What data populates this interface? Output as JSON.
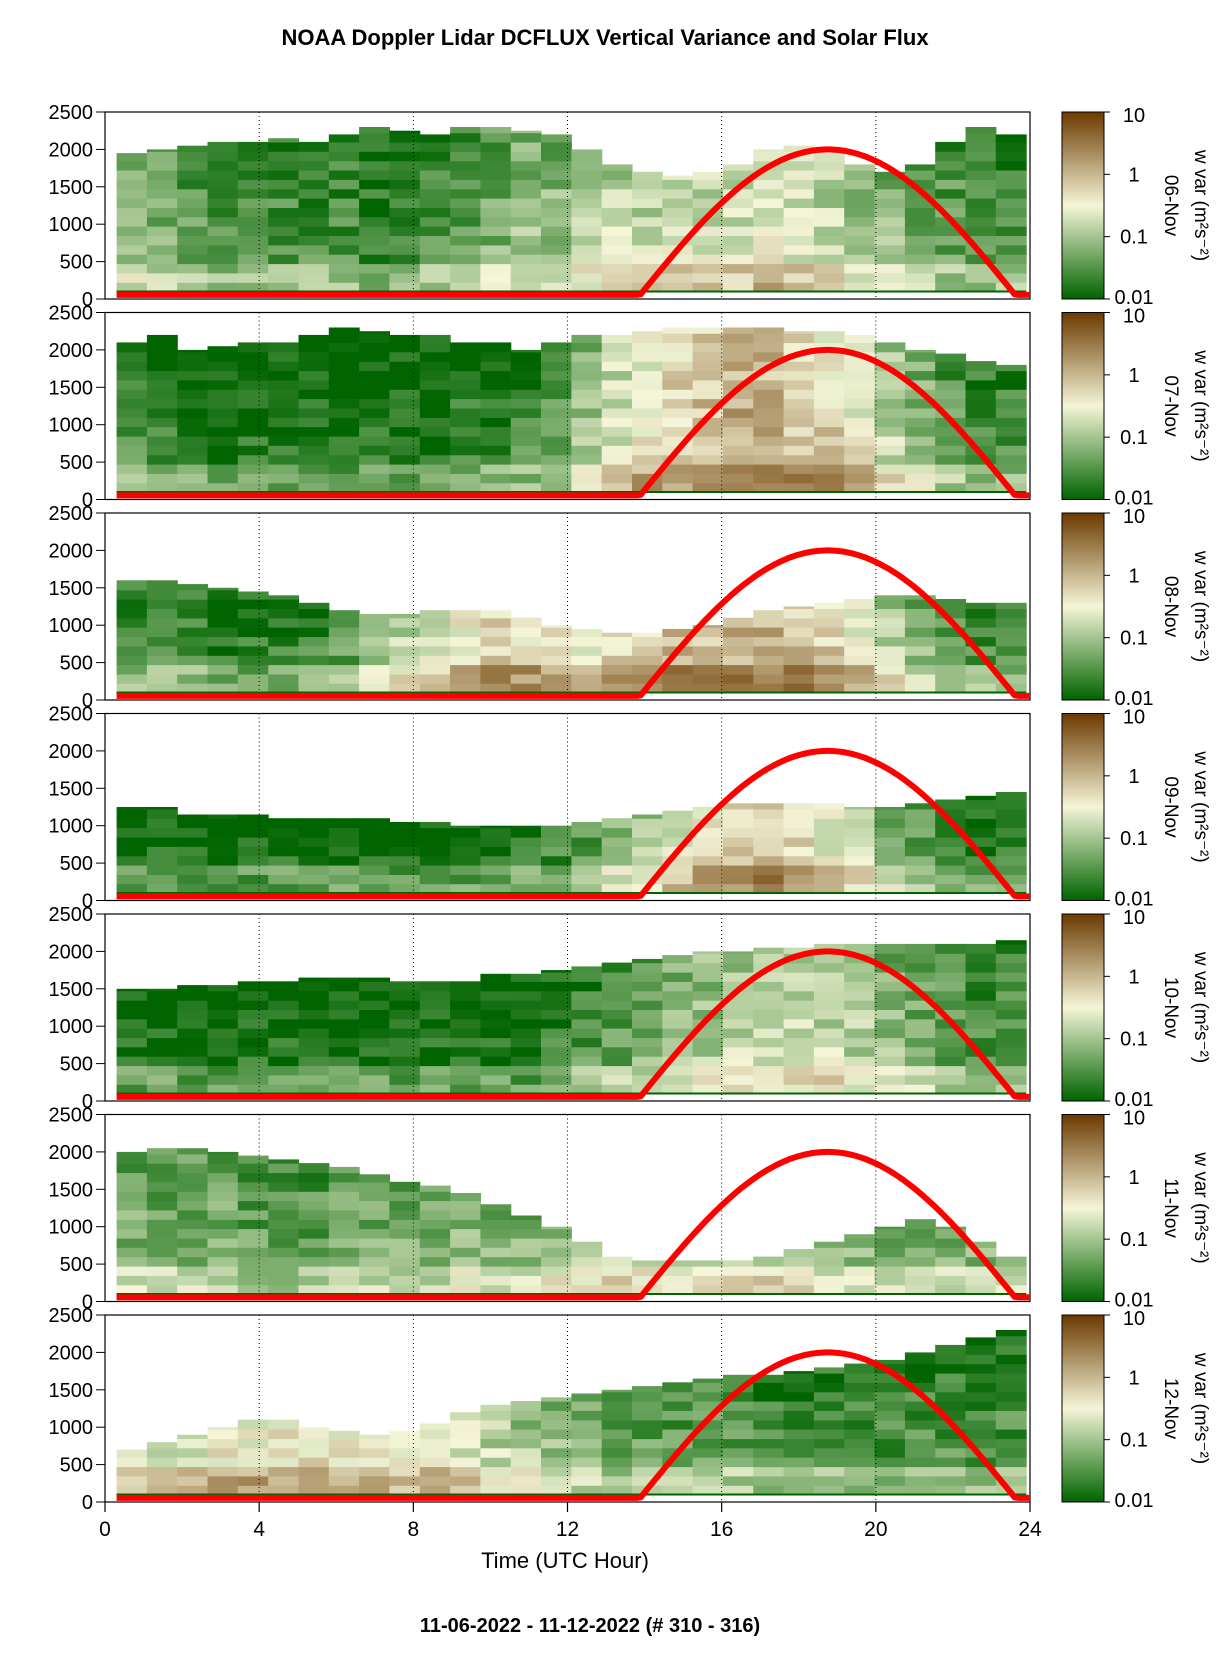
{
  "title": "NOAA Doppler Lidar DCFLUX Vertical Variance and Solar Flux",
  "footer": "11-06-2022 - 11-12-2022   (# 310 - 316)",
  "colors": {
    "sun": "#ff0000",
    "low": "#006400",
    "mid": "#f5f5d8",
    "high": "#6b3a00",
    "baseline": "#006400"
  },
  "chart_data": {
    "type": "heatmap",
    "xlabel": "Time (UTC Hour)",
    "xlim": [
      0,
      24
    ],
    "xticks": [
      0,
      4,
      8,
      12,
      16,
      20,
      24
    ],
    "ylim": [
      0,
      2500
    ],
    "yticks": [
      0,
      500,
      1000,
      1500,
      2000,
      2500
    ],
    "colorbar": {
      "label": "w var (m²s⁻²)",
      "scale": "log",
      "range": [
        0.01,
        10
      ],
      "ticks": [
        "10",
        "1",
        "0.1",
        "0.01"
      ]
    },
    "sun_curve": {
      "sunrise": 13.8,
      "peak_hour": 18.7,
      "sunset": 23.7,
      "peak": 2000
    },
    "panels": [
      {
        "day": "06-Nov",
        "top": [
          1950,
          2000,
          2050,
          2100,
          2100,
          2150,
          2100,
          2200,
          2300,
          2250,
          2200,
          2300,
          2300,
          2250,
          2200,
          2000,
          1800,
          1700,
          1650,
          1700,
          1800,
          2000,
          2050,
          2000,
          1800,
          1700,
          1800,
          2100,
          2300,
          2200
        ],
        "int": [
          0.35,
          0.3,
          0.25,
          0.2,
          0.2,
          0.2,
          0.2,
          0.2,
          0.15,
          0.15,
          0.2,
          0.25,
          0.3,
          0.35,
          0.35,
          0.4,
          0.45,
          0.45,
          0.5,
          0.5,
          0.5,
          0.55,
          0.5,
          0.45,
          0.4,
          0.35,
          0.3,
          0.25,
          0.2,
          0.2
        ]
      },
      {
        "day": "07-Nov",
        "top": [
          2100,
          2200,
          2000,
          2050,
          2100,
          2100,
          2200,
          2300,
          2250,
          2200,
          2200,
          2100,
          2100,
          2000,
          2100,
          2200,
          2200,
          2250,
          2300,
          2300,
          2300,
          2300,
          2250,
          2250,
          2200,
          2100,
          2000,
          1950,
          1850,
          1800
        ],
        "int": [
          0.2,
          0.15,
          0.15,
          0.1,
          0.1,
          0.1,
          0.1,
          0.1,
          0.1,
          0.1,
          0.1,
          0.15,
          0.15,
          0.2,
          0.25,
          0.35,
          0.5,
          0.6,
          0.65,
          0.7,
          0.75,
          0.75,
          0.7,
          0.65,
          0.55,
          0.45,
          0.35,
          0.25,
          0.2,
          0.2
        ]
      },
      {
        "day": "08-Nov",
        "top": [
          1600,
          1600,
          1550,
          1500,
          1450,
          1400,
          1300,
          1200,
          1150,
          1150,
          1200,
          1200,
          1200,
          1100,
          1000,
          950,
          900,
          900,
          950,
          1000,
          1100,
          1200,
          1250,
          1300,
          1350,
          1400,
          1400,
          1350,
          1300,
          1300
        ],
        "int": [
          0.2,
          0.2,
          0.2,
          0.15,
          0.15,
          0.15,
          0.2,
          0.25,
          0.35,
          0.45,
          0.55,
          0.6,
          0.65,
          0.65,
          0.6,
          0.6,
          0.65,
          0.7,
          0.75,
          0.75,
          0.75,
          0.75,
          0.7,
          0.65,
          0.55,
          0.45,
          0.35,
          0.25,
          0.2,
          0.2
        ]
      },
      {
        "day": "09-Nov",
        "top": [
          1250,
          1250,
          1150,
          1150,
          1150,
          1100,
          1100,
          1100,
          1100,
          1050,
          1050,
          1000,
          1000,
          1000,
          1000,
          1050,
          1100,
          1150,
          1200,
          1250,
          1300,
          1300,
          1300,
          1300,
          1250,
          1250,
          1300,
          1350,
          1400,
          1450
        ],
        "int": [
          0.1,
          0.1,
          0.1,
          0.1,
          0.1,
          0.1,
          0.1,
          0.1,
          0.1,
          0.1,
          0.1,
          0.1,
          0.1,
          0.15,
          0.2,
          0.25,
          0.35,
          0.45,
          0.55,
          0.65,
          0.7,
          0.7,
          0.65,
          0.55,
          0.45,
          0.35,
          0.25,
          0.2,
          0.15,
          0.15
        ]
      },
      {
        "day": "10-Nov",
        "top": [
          1500,
          1500,
          1550,
          1550,
          1600,
          1600,
          1650,
          1650,
          1650,
          1600,
          1600,
          1600,
          1700,
          1700,
          1750,
          1800,
          1850,
          1900,
          1950,
          2000,
          2000,
          2050,
          2050,
          2100,
          2100,
          2100,
          2100,
          2100,
          2100,
          2150
        ],
        "int": [
          0.1,
          0.1,
          0.1,
          0.1,
          0.1,
          0.1,
          0.1,
          0.1,
          0.1,
          0.1,
          0.1,
          0.1,
          0.1,
          0.1,
          0.15,
          0.2,
          0.25,
          0.3,
          0.35,
          0.4,
          0.45,
          0.45,
          0.45,
          0.45,
          0.4,
          0.35,
          0.3,
          0.25,
          0.2,
          0.2
        ]
      },
      {
        "day": "11-Nov",
        "top": [
          2000,
          2050,
          2050,
          2000,
          1950,
          1900,
          1850,
          1800,
          1700,
          1600,
          1550,
          1450,
          1300,
          1150,
          1000,
          800,
          600,
          550,
          550,
          550,
          550,
          600,
          700,
          800,
          900,
          1000,
          1100,
          1000,
          800,
          600
        ],
        "int": [
          0.3,
          0.3,
          0.3,
          0.3,
          0.25,
          0.25,
          0.25,
          0.3,
          0.3,
          0.3,
          0.3,
          0.35,
          0.35,
          0.35,
          0.4,
          0.45,
          0.5,
          0.5,
          0.5,
          0.5,
          0.5,
          0.5,
          0.45,
          0.4,
          0.35,
          0.35,
          0.3,
          0.3,
          0.35,
          0.4
        ]
      },
      {
        "day": "12-Nov",
        "top": [
          700,
          800,
          900,
          1000,
          1100,
          1100,
          1000,
          950,
          900,
          950,
          1050,
          1200,
          1300,
          1350,
          1400,
          1450,
          1500,
          1550,
          1600,
          1650,
          1700,
          1700,
          1750,
          1800,
          1850,
          1900,
          2000,
          2100,
          2200,
          2300
        ],
        "int": [
          0.55,
          0.55,
          0.55,
          0.6,
          0.6,
          0.6,
          0.6,
          0.6,
          0.6,
          0.55,
          0.55,
          0.5,
          0.45,
          0.4,
          0.35,
          0.3,
          0.25,
          0.25,
          0.25,
          0.25,
          0.25,
          0.2,
          0.2,
          0.2,
          0.2,
          0.2,
          0.2,
          0.2,
          0.2,
          0.2
        ]
      }
    ]
  }
}
